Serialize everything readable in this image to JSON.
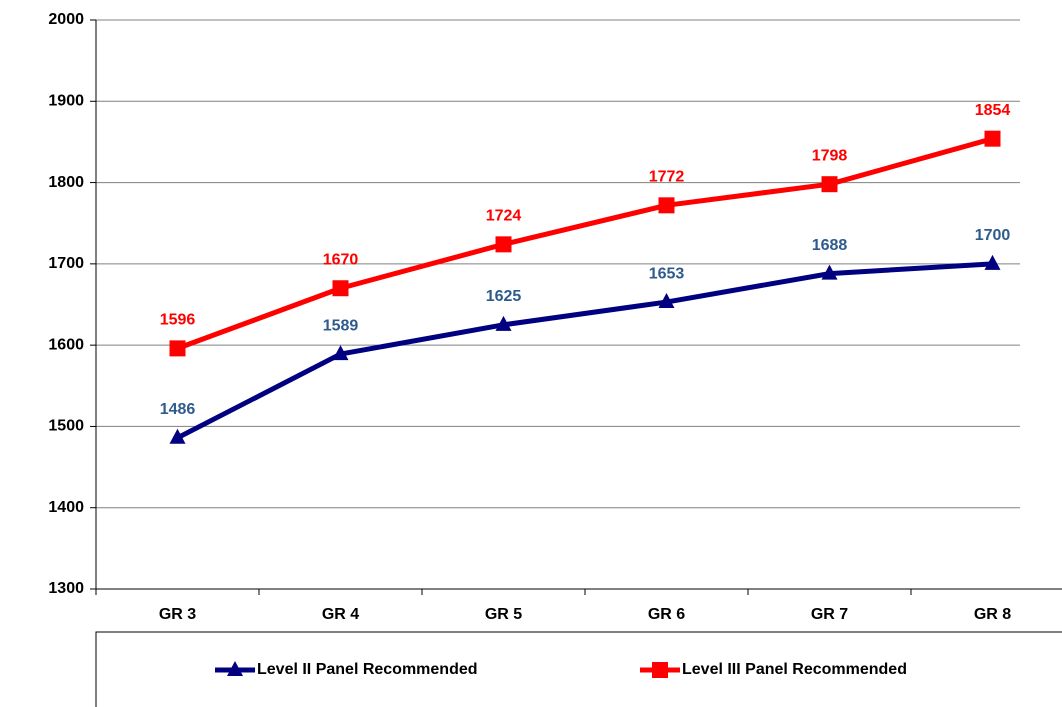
{
  "chart_data": {
    "type": "line",
    "categories": [
      "GR 3",
      "GR 4",
      "GR 5",
      "GR 6",
      "GR 7",
      "GR 8"
    ],
    "series": [
      {
        "name": "Level II Panel Recommended",
        "color": "#000080",
        "label_color": "#2f5b8c",
        "marker": "triangle",
        "values": [
          1486,
          1589,
          1625,
          1653,
          1688,
          1700
        ]
      },
      {
        "name": "Level III Panel Recommended",
        "color": "#ff0000",
        "label_color": "#ff0000",
        "marker": "square",
        "values": [
          1596,
          1670,
          1724,
          1772,
          1798,
          1854
        ]
      }
    ],
    "ylim": [
      1300,
      2000
    ],
    "yticks": [
      1300,
      1400,
      1500,
      1600,
      1700,
      1800,
      1900,
      2000
    ],
    "grid": true,
    "legend": "bottom"
  }
}
